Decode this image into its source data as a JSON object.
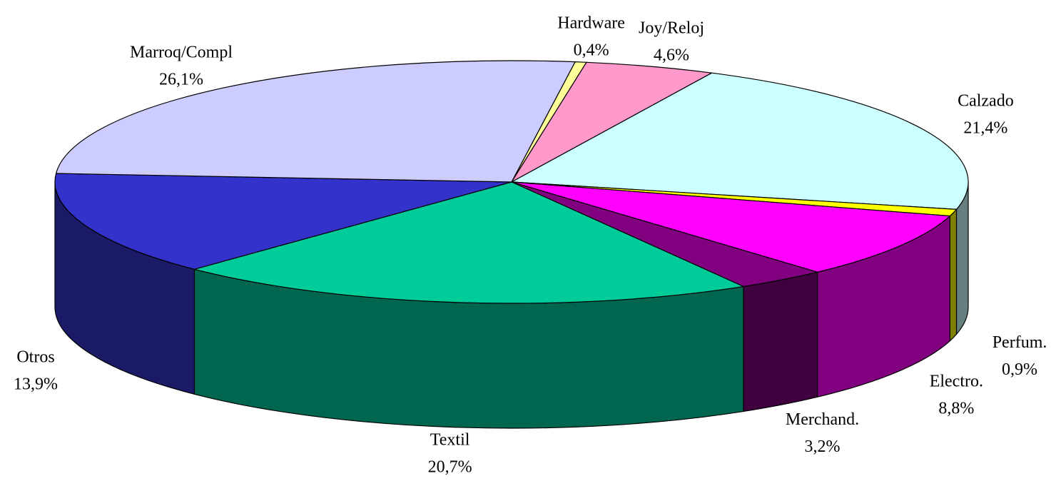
{
  "chart_data": {
    "type": "pie3d",
    "categories": [
      "Hardware",
      "Joy/Reloj",
      "Calzado",
      "Perfum.",
      "Electro.",
      "Merchand.",
      "Textil",
      "Otros",
      "Marroq/Compl"
    ],
    "values": [
      0.4,
      4.6,
      21.4,
      0.9,
      8.8,
      3.2,
      20.7,
      13.9,
      26.1
    ],
    "value_labels": [
      "0,4%",
      "4,6%",
      "21,4%",
      "0,9%",
      "8,8%",
      "3,2%",
      "20,7%",
      "13,9%",
      "26,1%"
    ],
    "colors": [
      "#ffff99",
      "#ff99cc",
      "#ccffff",
      "#ffff00",
      "#ff00ff",
      "#800080",
      "#00cc99",
      "#3333cc",
      "#ccccff"
    ],
    "side_colors": [
      "#808050",
      "#804d66",
      "#668080",
      "#808000",
      "#800080",
      "#400040",
      "#006650",
      "#1a1a66",
      "#666680"
    ]
  }
}
